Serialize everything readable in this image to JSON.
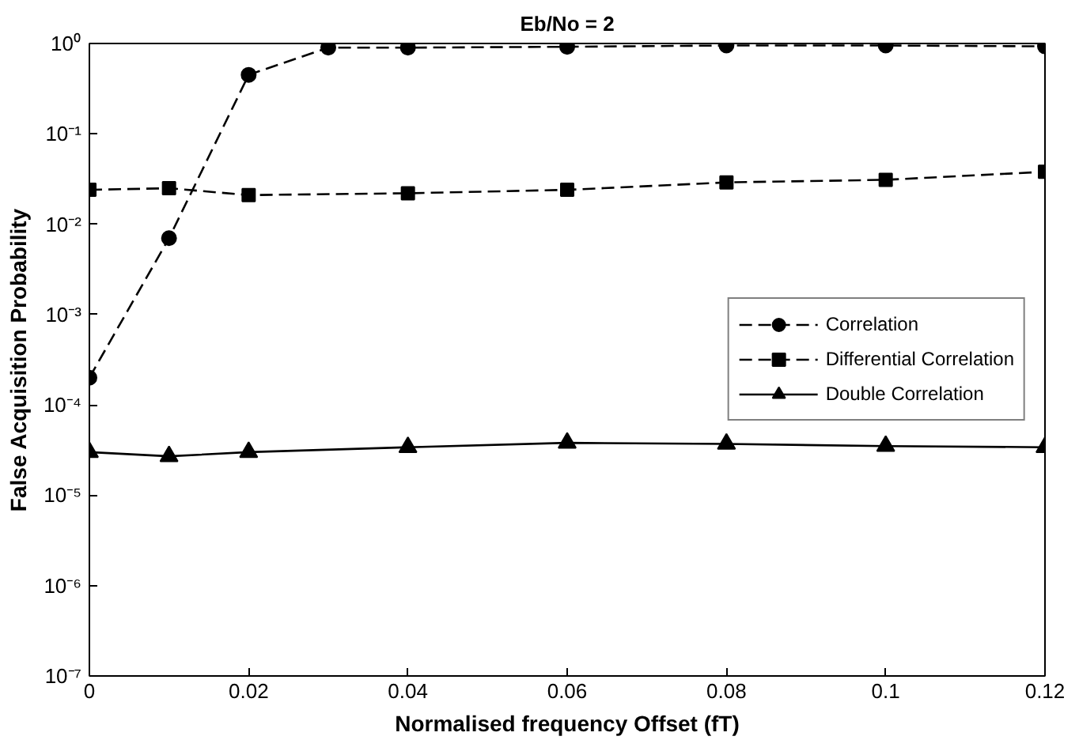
{
  "chart_data": {
    "type": "line",
    "title": "Eb/No = 2",
    "xlabel": "Normalised frequency Offset (fT)",
    "ylabel": "False Acquisition Probability",
    "series": [
      {
        "name": "Correlation",
        "color": "#000000",
        "marker": "circle",
        "line_style": "dashed",
        "x": [
          0,
          0.01,
          0.02,
          0.03,
          0.04,
          0.06,
          0.08,
          0.1,
          0.12
        ],
        "values": [
          0.0002,
          0.007,
          0.45,
          0.9,
          0.9,
          0.92,
          0.95,
          0.95,
          0.93
        ]
      },
      {
        "name": "Differential Correlation",
        "color": "#000000",
        "marker": "square",
        "line_style": "dashed",
        "x": [
          0,
          0.01,
          0.02,
          0.04,
          0.06,
          0.08,
          0.1,
          0.12
        ],
        "values": [
          0.024,
          0.025,
          0.021,
          0.022,
          0.024,
          0.029,
          0.031,
          0.038
        ]
      },
      {
        "name": "Double Correlation",
        "color": "#000000",
        "marker": "triangle",
        "line_style": "solid",
        "x": [
          0,
          0.01,
          0.02,
          0.04,
          0.06,
          0.08,
          0.1,
          0.12
        ],
        "values": [
          3e-05,
          2.7e-05,
          3e-05,
          3.4e-05,
          3.8e-05,
          3.7e-05,
          3.5e-05,
          3.4e-05
        ]
      }
    ],
    "log": "y",
    "xlim": [
      0,
      0.12
    ],
    "ylim": [
      1e-07,
      1
    ],
    "xticks": [
      0,
      0.02,
      0.04,
      0.06,
      0.08,
      0.1,
      0.12
    ],
    "yticks": [
      {
        "value": 1e-07,
        "label": "10⁻⁷"
      },
      {
        "value": 1e-06,
        "label": "10⁻⁶"
      },
      {
        "value": 1e-05,
        "label": "10⁻⁵"
      },
      {
        "value": 0.0001,
        "label": "10⁻⁴"
      },
      {
        "value": 0.001,
        "label": "10⁻³"
      },
      {
        "value": 0.01,
        "label": "10⁻²"
      },
      {
        "value": 0.1,
        "label": "10⁻¹"
      },
      {
        "value": 1,
        "label": "10⁰"
      }
    ],
    "grid": false,
    "legend": "right"
  }
}
